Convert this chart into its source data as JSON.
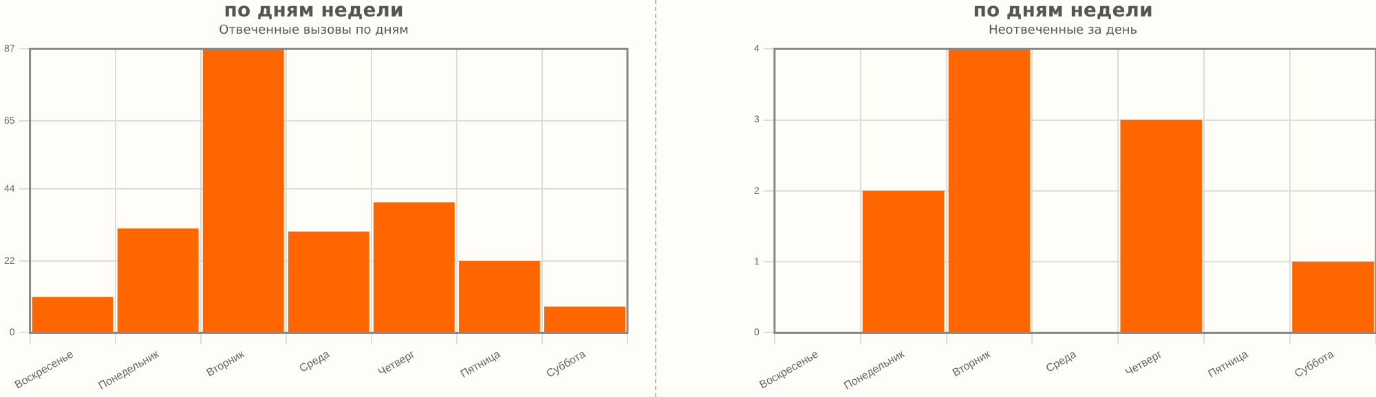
{
  "chart_data": [
    {
      "type": "bar",
      "title": "по дням недели",
      "subtitle": "Отвеченные вызовы по дням",
      "categories": [
        "Воскресенье",
        "Понедельник",
        "Вторник",
        "Среда",
        "Четверг",
        "Пятница",
        "Суббота"
      ],
      "values": [
        11,
        32,
        87,
        31,
        40,
        22,
        8
      ],
      "color": "#ff6600",
      "ylim": [
        0,
        87
      ],
      "yticks": [
        0,
        22,
        44,
        65,
        87
      ],
      "grid": true,
      "legend": false
    },
    {
      "type": "bar",
      "title": "по дням недели",
      "subtitle": "Неотвеченные за день",
      "categories": [
        "Воскресенье",
        "Понедельник",
        "Вторник",
        "Среда",
        "Четверг",
        "Пятница",
        "Суббота"
      ],
      "values": [
        0,
        2,
        4,
        0,
        3,
        0,
        1
      ],
      "color": "#ff6600",
      "ylim": [
        0,
        4
      ],
      "yticks": [
        0,
        1,
        2,
        3,
        4
      ],
      "grid": true,
      "legend": false
    }
  ]
}
